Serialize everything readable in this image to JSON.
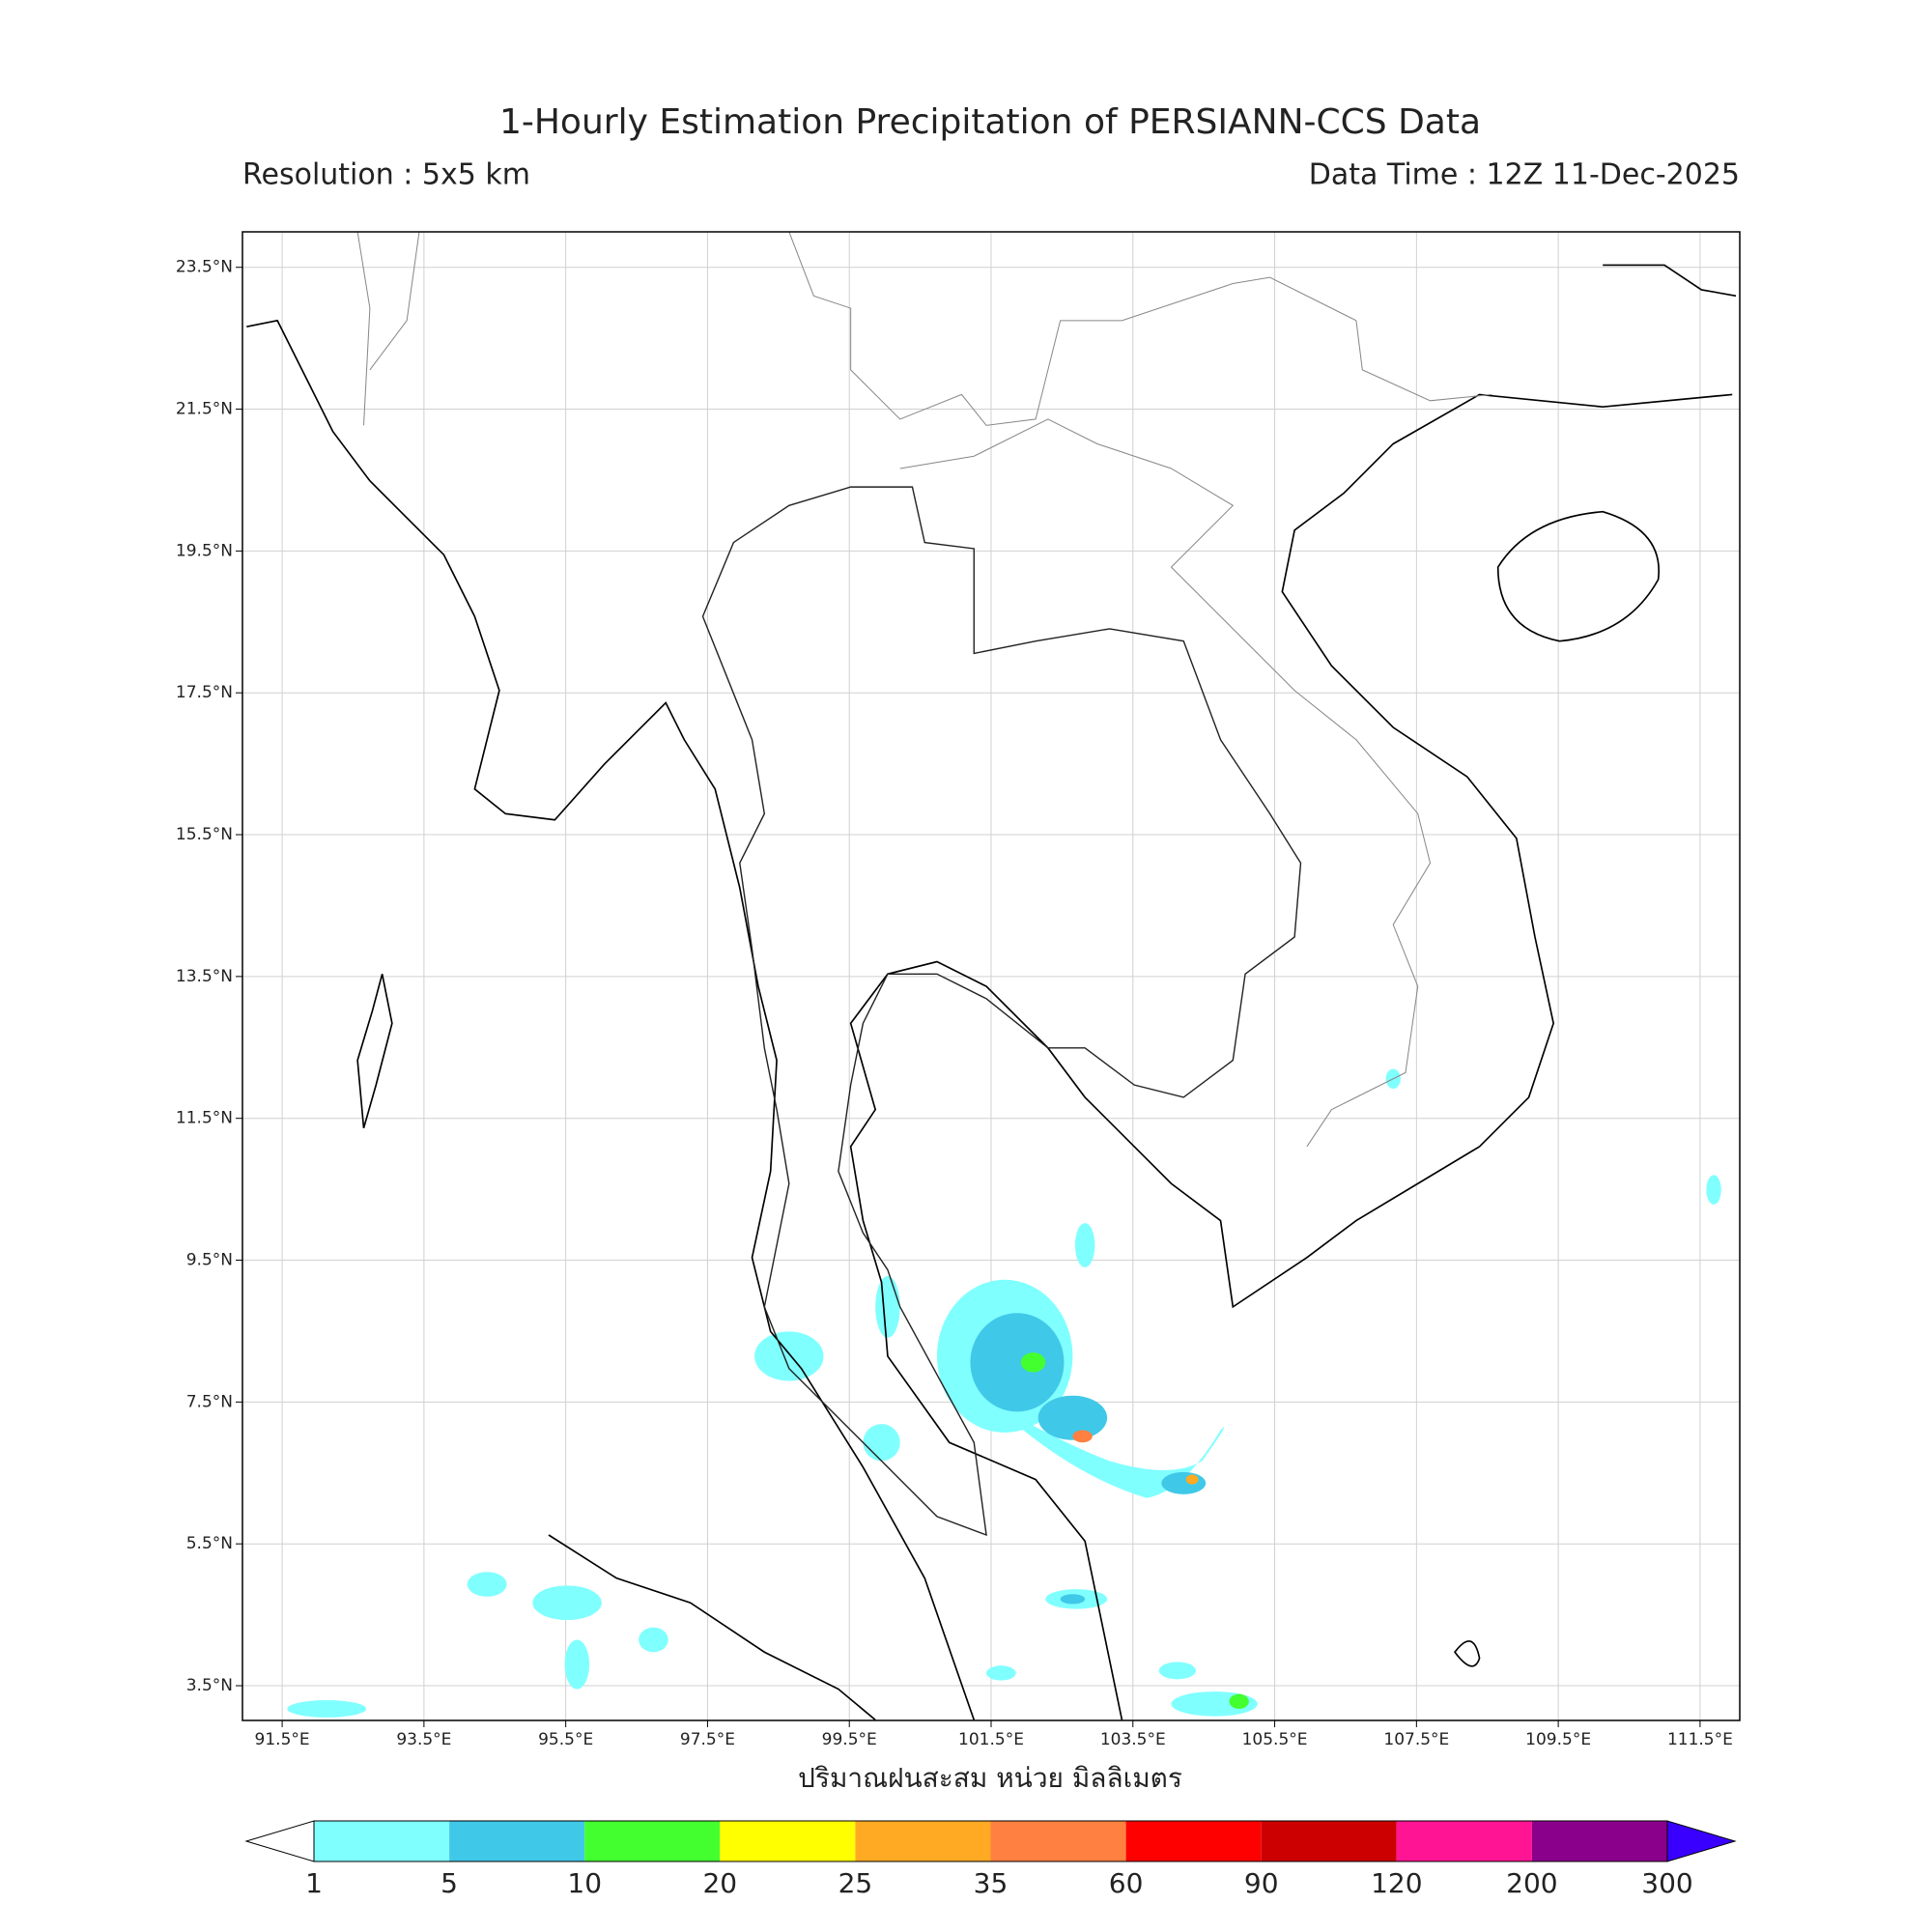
{
  "header": {
    "title": "1-Hourly Estimation Precipitation of PERSIANN-CCS Data",
    "resolution": "Resolution : 5x5 km",
    "data_time": "Data Time : 12Z 11-Dec-2025"
  },
  "map": {
    "lon_range": [
      90.94,
      112.06
    ],
    "lat_range": [
      3.01,
      24.0
    ],
    "grid": true,
    "lon_ticks": [
      {
        "value": 91.5,
        "label": "91.5°E"
      },
      {
        "value": 93.5,
        "label": "93.5°E"
      },
      {
        "value": 95.5,
        "label": "95.5°E"
      },
      {
        "value": 97.5,
        "label": "97.5°E"
      },
      {
        "value": 99.5,
        "label": "99.5°E"
      },
      {
        "value": 101.5,
        "label": "101.5°E"
      },
      {
        "value": 103.5,
        "label": "103.5°E"
      },
      {
        "value": 105.5,
        "label": "105.5°E"
      },
      {
        "value": 107.5,
        "label": "107.5°E"
      },
      {
        "value": 109.5,
        "label": "109.5°E"
      },
      {
        "value": 111.5,
        "label": "111.5°E"
      }
    ],
    "lat_ticks": [
      {
        "value": 3.5,
        "label": "3.5°N"
      },
      {
        "value": 5.5,
        "label": "5.5°N"
      },
      {
        "value": 7.5,
        "label": "7.5°N"
      },
      {
        "value": 9.5,
        "label": "9.5°N"
      },
      {
        "value": 11.5,
        "label": "11.5°N"
      },
      {
        "value": 13.5,
        "label": "13.5°N"
      },
      {
        "value": 15.5,
        "label": "15.5°N"
      },
      {
        "value": 17.5,
        "label": "17.5°N"
      },
      {
        "value": 19.5,
        "label": "19.5°N"
      },
      {
        "value": 21.5,
        "label": "21.5°N"
      },
      {
        "value": 23.5,
        "label": "23.5°N"
      }
    ]
  },
  "colorbar": {
    "label": "ปริมาณฝนสะสม หน่วย มิลลิเมตร",
    "levels": [
      1,
      5,
      10,
      20,
      25,
      35,
      60,
      90,
      120,
      200,
      300
    ],
    "colors": [
      "#80ffff",
      "#40c8e8",
      "#44ff30",
      "#ffff00",
      "#ffaa22",
      "#ff8040",
      "#ff0000",
      "#cc0000",
      "#ff1493",
      "#8b008b"
    ],
    "under_color": "#ffffff",
    "over_color": "#3a00ff"
  }
}
